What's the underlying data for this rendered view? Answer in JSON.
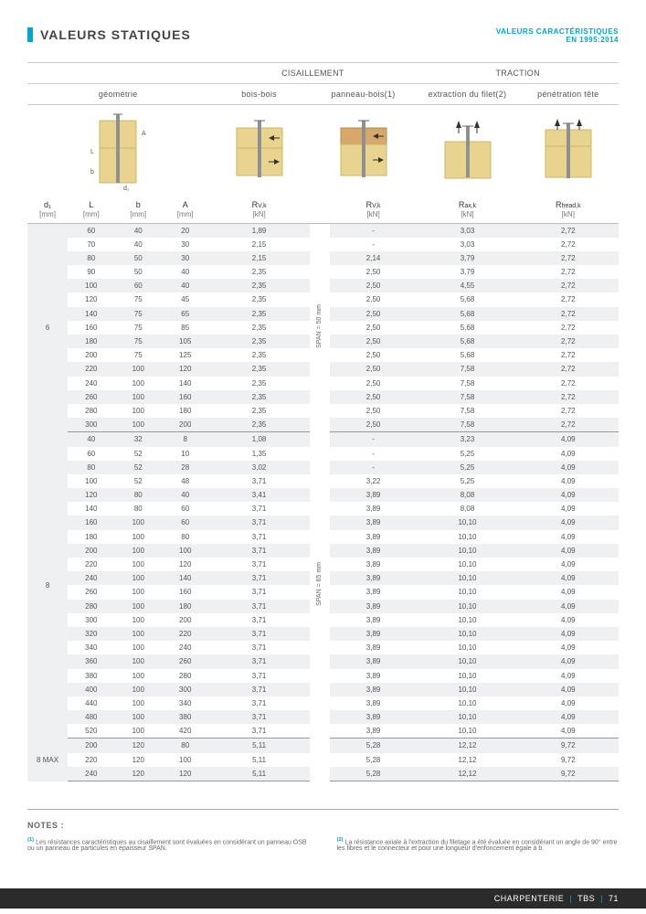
{
  "header": {
    "title": "VALEURS STATIQUES",
    "right_line1": "VALEURS CARACTÉRISTIQUES",
    "right_line2": "EN 1995:2014"
  },
  "groups": {
    "cisaillement": "CISAILLEMENT",
    "traction": "TRACTION",
    "geometrie": "géométrie",
    "bois_bois": "bois-bois",
    "panneau_bois": "panneau-bois(1)",
    "extraction": "extraction du filet(2)",
    "penetration": "pénétration tête"
  },
  "symbols": {
    "d1": "d₁",
    "L": "L",
    "b": "b",
    "A": "A",
    "rvk": "R",
    "rvk_sub": "V,k",
    "raxk": "R",
    "raxk_sub": "ax,k",
    "rheadk": "R",
    "rheadk_sub": "head,k"
  },
  "units": {
    "mm": "[mm]",
    "kn": "[kN]"
  },
  "span_labels": {
    "s50": "SPAN = 50 mm",
    "s65": "SPAN = 65 mm"
  },
  "group_labels": {
    "g6": "6",
    "g8": "8",
    "g8max": "8 MAX"
  },
  "rows6": [
    {
      "L": 60,
      "b": 40,
      "A": 20,
      "rv": "1,89",
      "pan": "-",
      "rax": "3,03",
      "rh": "2,72"
    },
    {
      "L": 70,
      "b": 40,
      "A": 30,
      "rv": "2,15",
      "pan": "-",
      "rax": "3,03",
      "rh": "2,72"
    },
    {
      "L": 80,
      "b": 50,
      "A": 30,
      "rv": "2,15",
      "pan": "2,14",
      "rax": "3,79",
      "rh": "2,72"
    },
    {
      "L": 90,
      "b": 50,
      "A": 40,
      "rv": "2,35",
      "pan": "2,50",
      "rax": "3,79",
      "rh": "2,72"
    },
    {
      "L": 100,
      "b": 60,
      "A": 40,
      "rv": "2,35",
      "pan": "2,50",
      "rax": "4,55",
      "rh": "2,72"
    },
    {
      "L": 120,
      "b": 75,
      "A": 45,
      "rv": "2,35",
      "pan": "2,50",
      "rax": "5,68",
      "rh": "2,72"
    },
    {
      "L": 140,
      "b": 75,
      "A": 65,
      "rv": "2,35",
      "pan": "2,50",
      "rax": "5,68",
      "rh": "2,72"
    },
    {
      "L": 160,
      "b": 75,
      "A": 85,
      "rv": "2,35",
      "pan": "2,50",
      "rax": "5,68",
      "rh": "2,72"
    },
    {
      "L": 180,
      "b": 75,
      "A": 105,
      "rv": "2,35",
      "pan": "2,50",
      "rax": "5,68",
      "rh": "2,72"
    },
    {
      "L": 200,
      "b": 75,
      "A": 125,
      "rv": "2,35",
      "pan": "2,50",
      "rax": "5,68",
      "rh": "2,72"
    },
    {
      "L": 220,
      "b": 100,
      "A": 120,
      "rv": "2,35",
      "pan": "2,50",
      "rax": "7,58",
      "rh": "2,72"
    },
    {
      "L": 240,
      "b": 100,
      "A": 140,
      "rv": "2,35",
      "pan": "2,50",
      "rax": "7,58",
      "rh": "2,72"
    },
    {
      "L": 260,
      "b": 100,
      "A": 160,
      "rv": "2,35",
      "pan": "2,50",
      "rax": "7,58",
      "rh": "2,72"
    },
    {
      "L": 280,
      "b": 100,
      "A": 180,
      "rv": "2,35",
      "pan": "2,50",
      "rax": "7,58",
      "rh": "2,72"
    },
    {
      "L": 300,
      "b": 100,
      "A": 200,
      "rv": "2,35",
      "pan": "2,50",
      "rax": "7,58",
      "rh": "2,72"
    }
  ],
  "rows8": [
    {
      "L": 40,
      "b": 32,
      "A": 8,
      "rv": "1,08",
      "pan": "-",
      "rax": "3,23",
      "rh": "4,09"
    },
    {
      "L": 60,
      "b": 52,
      "A": 10,
      "rv": "1,35",
      "pan": "-",
      "rax": "5,25",
      "rh": "4,09"
    },
    {
      "L": 80,
      "b": 52,
      "A": 28,
      "rv": "3,02",
      "pan": "-",
      "rax": "5,25",
      "rh": "4,09"
    },
    {
      "L": 100,
      "b": 52,
      "A": 48,
      "rv": "3,71",
      "pan": "3,22",
      "rax": "5,25",
      "rh": "4,09"
    },
    {
      "L": 120,
      "b": 80,
      "A": 40,
      "rv": "3,41",
      "pan": "3,89",
      "rax": "8,08",
      "rh": "4,09"
    },
    {
      "L": 140,
      "b": 80,
      "A": 60,
      "rv": "3,71",
      "pan": "3,89",
      "rax": "8,08",
      "rh": "4,09"
    },
    {
      "L": 160,
      "b": 100,
      "A": 60,
      "rv": "3,71",
      "pan": "3,89",
      "rax": "10,10",
      "rh": "4,09"
    },
    {
      "L": 180,
      "b": 100,
      "A": 80,
      "rv": "3,71",
      "pan": "3,89",
      "rax": "10,10",
      "rh": "4,09"
    },
    {
      "L": 200,
      "b": 100,
      "A": 100,
      "rv": "3,71",
      "pan": "3,89",
      "rax": "10,10",
      "rh": "4,09"
    },
    {
      "L": 220,
      "b": 100,
      "A": 120,
      "rv": "3,71",
      "pan": "3,89",
      "rax": "10,10",
      "rh": "4,09"
    },
    {
      "L": 240,
      "b": 100,
      "A": 140,
      "rv": "3,71",
      "pan": "3,89",
      "rax": "10,10",
      "rh": "4,09"
    },
    {
      "L": 260,
      "b": 100,
      "A": 160,
      "rv": "3,71",
      "pan": "3,89",
      "rax": "10,10",
      "rh": "4,09"
    },
    {
      "L": 280,
      "b": 100,
      "A": 180,
      "rv": "3,71",
      "pan": "3,89",
      "rax": "10,10",
      "rh": "4,09"
    },
    {
      "L": 300,
      "b": 100,
      "A": 200,
      "rv": "3,71",
      "pan": "3,89",
      "rax": "10,10",
      "rh": "4,09"
    },
    {
      "L": 320,
      "b": 100,
      "A": 220,
      "rv": "3,71",
      "pan": "3,89",
      "rax": "10,10",
      "rh": "4,09"
    },
    {
      "L": 340,
      "b": 100,
      "A": 240,
      "rv": "3,71",
      "pan": "3,89",
      "rax": "10,10",
      "rh": "4,09"
    },
    {
      "L": 360,
      "b": 100,
      "A": 260,
      "rv": "3,71",
      "pan": "3,89",
      "rax": "10,10",
      "rh": "4,09"
    },
    {
      "L": 380,
      "b": 100,
      "A": 280,
      "rv": "3,71",
      "pan": "3,89",
      "rax": "10,10",
      "rh": "4,09"
    },
    {
      "L": 400,
      "b": 100,
      "A": 300,
      "rv": "3,71",
      "pan": "3,89",
      "rax": "10,10",
      "rh": "4,09"
    },
    {
      "L": 440,
      "b": 100,
      "A": 340,
      "rv": "3,71",
      "pan": "3,89",
      "rax": "10,10",
      "rh": "4,09"
    },
    {
      "L": 480,
      "b": 100,
      "A": 380,
      "rv": "3,71",
      "pan": "3,89",
      "rax": "10,10",
      "rh": "4,09"
    },
    {
      "L": 520,
      "b": 100,
      "A": 420,
      "rv": "3,71",
      "pan": "3,89",
      "rax": "10,10",
      "rh": "4,09"
    }
  ],
  "rows8max": [
    {
      "L": 200,
      "b": 120,
      "A": 80,
      "rv": "5,11",
      "pan": "5,28",
      "rax": "12,12",
      "rh": "9,72"
    },
    {
      "L": 220,
      "b": 120,
      "A": 100,
      "rv": "5,11",
      "pan": "5,28",
      "rax": "12,12",
      "rh": "9,72"
    },
    {
      "L": 240,
      "b": 120,
      "A": 120,
      "rv": "5,11",
      "pan": "5,28",
      "rax": "12,12",
      "rh": "9,72"
    }
  ],
  "notes": {
    "title": "NOTES :",
    "n1_sup": "(1)",
    "n1": "Les résistances caractéristiques au cisaillement sont évaluées en considérant un panneau OSB ou un panneau de particules en épaisseur SPAN.",
    "n2_sup": "(2)",
    "n2": "La résistance axiale à l'extraction du filetage a été évaluée en considérant un angle de 90° entre les fibres et le connecteur et pour une longueur d'enfoncement égale à b."
  },
  "footer": {
    "a": "CHARPENTERIE",
    "b": "TBS",
    "c": "71"
  },
  "colors": {
    "accent": "#00a6c9",
    "stripe": "#eef0f1",
    "wood": "#e8d48f",
    "metal": "#909090"
  }
}
